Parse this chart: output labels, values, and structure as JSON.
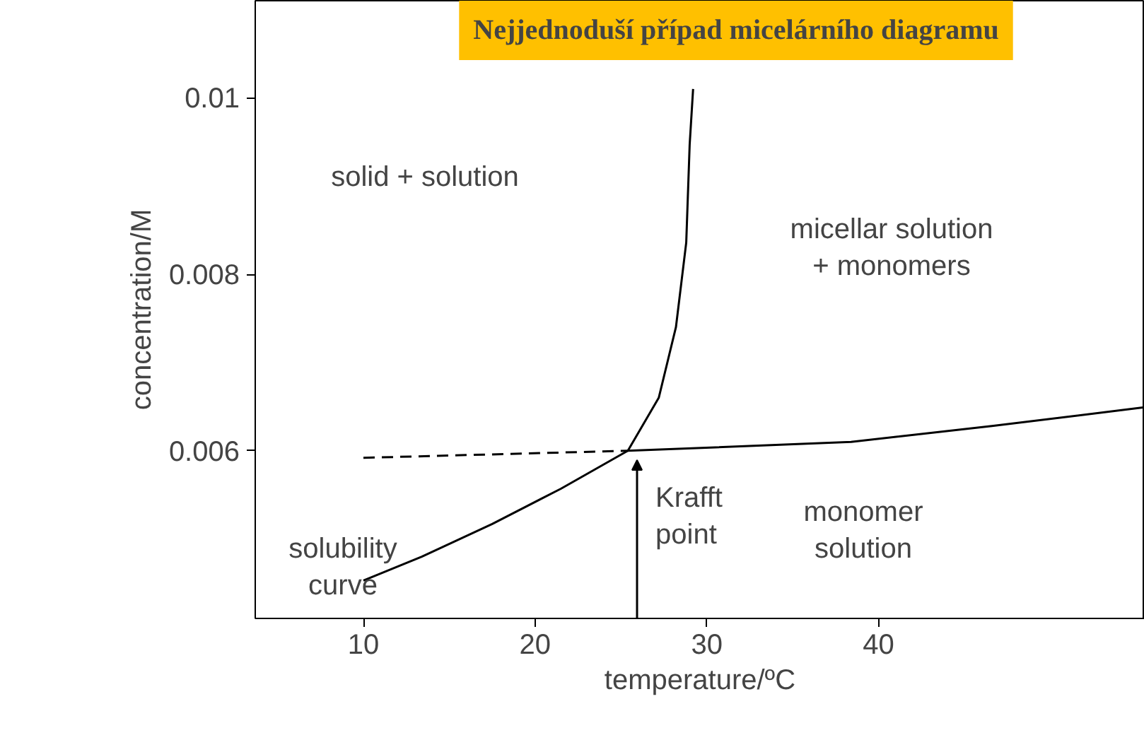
{
  "chart_data": {
    "type": "line",
    "title": "Nejjednoduší případ micelárního diagramu",
    "xlabel": "temperature/ºC",
    "ylabel": "concentration/M",
    "xlim": [
      3.7,
      55.5
    ],
    "ylim": [
      0.0041,
      0.0111
    ],
    "xticks": [
      10,
      20,
      30,
      40
    ],
    "yticks": [
      {
        "value": 0.006,
        "label": "0.006"
      },
      {
        "value": 0.008,
        "label": "0.008"
      },
      {
        "value": 0.01,
        "label": "0.01"
      }
    ],
    "grid": false,
    "marker": "none",
    "series": [
      {
        "color": "#000000",
        "line_style": "solid",
        "x": [
          10,
          13.4,
          17.5,
          21.5,
          25.4,
          27.2,
          28.2,
          28.8,
          29.0,
          29.2
        ],
        "values": [
          0.00453,
          0.0048,
          0.00517,
          0.00557,
          0.006,
          0.0066,
          0.0074,
          0.00836,
          0.00947,
          0.0101
        ]
      },
      {
        "color": "#000000",
        "line_style": "dashed",
        "x": [
          10,
          25.4
        ],
        "values": [
          0.00592,
          0.006
        ]
      },
      {
        "color": "#000000",
        "line_style": "solid",
        "x": [
          25.4,
          38.4,
          46.6,
          55.4
        ],
        "values": [
          0.006,
          0.0061,
          0.00628,
          0.00649
        ]
      }
    ],
    "annotations": [
      "solid + solution",
      "micellar solution\n+ monomers",
      "monomer\nsolution",
      "solubility\ncurve",
      "Krafft\npoint"
    ]
  }
}
